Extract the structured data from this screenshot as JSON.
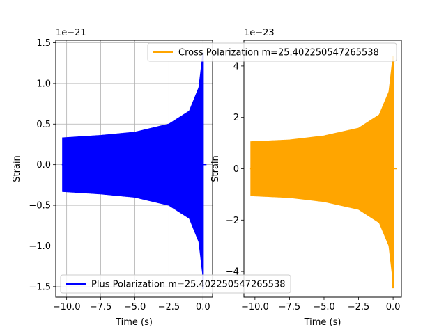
{
  "chart_data": [
    {
      "type": "line",
      "xlabel": "Time (s)",
      "ylabel": "Strain",
      "y_offset_label": "1e−21",
      "xlim": [
        -10.8,
        0.7
      ],
      "ylim": [
        -1.63,
        1.53
      ],
      "xticks": [
        -10.0,
        -7.5,
        -5.0,
        -2.5,
        0.0
      ],
      "xtick_labels": [
        "−10.0",
        "−7.5",
        "−5.0",
        "−2.5",
        "0.0"
      ],
      "yticks": [
        -1.5,
        -1.0,
        -0.5,
        0.0,
        0.5,
        1.0,
        1.5
      ],
      "ytick_labels": [
        "−1.5",
        "−1.0",
        "−0.5",
        "0.0",
        "0.5",
        "1.0",
        "1.5"
      ],
      "grid": true,
      "legend_position": "lower-left",
      "series": [
        {
          "name": "Plus Polarization m=25.402250547265538",
          "color": "#0000ff",
          "x_start": -10.3,
          "x_end": 0.0,
          "envelope": [
            [
              -10.3,
              0.33
            ],
            [
              -7.5,
              0.36
            ],
            [
              -5.0,
              0.4
            ],
            [
              -2.5,
              0.5
            ],
            [
              -1.0,
              0.66
            ],
            [
              -0.3,
              0.95
            ],
            [
              0.0,
              1.38
            ]
          ],
          "min_value": -1.53,
          "max_value": 1.38
        }
      ]
    },
    {
      "type": "line",
      "xlabel": "Time (s)",
      "ylabel": "Strain",
      "y_offset_label": "1e−23",
      "xlim": [
        -10.8,
        0.6
      ],
      "ylim": [
        -5.0,
        5.0
      ],
      "xticks": [
        -10.0,
        -7.5,
        -5.0,
        -2.5,
        0.0
      ],
      "xtick_labels": [
        "−10.0",
        "−7.5",
        "−5.0",
        "−2.5",
        "0.0"
      ],
      "yticks": [
        -4,
        -2,
        0,
        2,
        4
      ],
      "ytick_labels": [
        "−4",
        "−2",
        "0",
        "2",
        "4"
      ],
      "grid": false,
      "legend_position": "top-center",
      "series": [
        {
          "name": "Cross Polarization m=25.402250547265538",
          "color": "#ffa500",
          "x_start": -10.3,
          "x_end": 0.0,
          "envelope": [
            [
              -10.3,
              1.05
            ],
            [
              -7.5,
              1.12
            ],
            [
              -5.0,
              1.28
            ],
            [
              -2.5,
              1.58
            ],
            [
              -1.0,
              2.1
            ],
            [
              -0.3,
              3.0
            ],
            [
              0.0,
              4.4
            ]
          ],
          "min_value": -4.65,
          "max_value": 4.4
        }
      ]
    }
  ]
}
